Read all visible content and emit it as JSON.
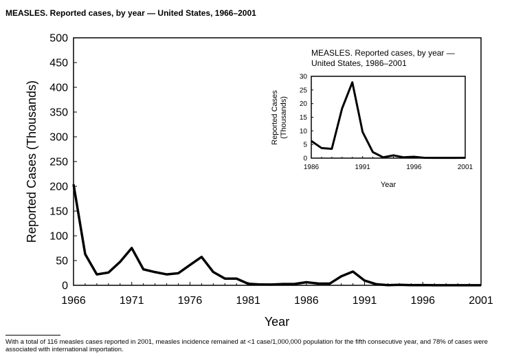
{
  "chart_data": [
    {
      "type": "line",
      "title": "MEASLES. Reported cases, by year — United States, 1966–2001",
      "xlabel": "Year",
      "ylabel": "Reported Cases (Thousands)",
      "xlim": [
        1966,
        2001
      ],
      "ylim": [
        0,
        500
      ],
      "xticks": [
        "1966",
        "1971",
        "1976",
        "1981",
        "1986",
        "1991",
        "1996",
        "2001"
      ],
      "yticks": [
        "0",
        "50",
        "100",
        "150",
        "200",
        "250",
        "300",
        "350",
        "400",
        "450",
        "500"
      ],
      "x": [
        1966,
        1967,
        1968,
        1969,
        1970,
        1971,
        1972,
        1973,
        1974,
        1975,
        1976,
        1977,
        1978,
        1979,
        1980,
        1981,
        1982,
        1983,
        1984,
        1985,
        1986,
        1987,
        1988,
        1989,
        1990,
        1991,
        1992,
        1993,
        1994,
        1995,
        1996,
        1997,
        1998,
        1999,
        2000,
        2001
      ],
      "values": [
        204,
        63,
        22,
        25.8,
        47.4,
        75.3,
        32.3,
        26.7,
        22.1,
        24.4,
        41.1,
        57.3,
        26.9,
        13.6,
        13.5,
        3.1,
        1.7,
        1.5,
        2.6,
        2.8,
        6.3,
        3.7,
        3.4,
        18.2,
        27.8,
        9.6,
        2.2,
        0.3,
        1.0,
        0.3,
        0.5,
        0.14,
        0.1,
        0.1,
        0.09,
        0.12
      ],
      "grid": false
    },
    {
      "type": "line",
      "title": "MEASLES. Reported cases, by year — United States, 1986–2001",
      "title_lines": [
        "MEASLES. Reported cases, by year —",
        "United States, 1986–2001"
      ],
      "xlabel": "Year",
      "ylabel_lines": [
        "Reported Cases",
        "(Thousands)"
      ],
      "xlim": [
        1986,
        2001
      ],
      "ylim": [
        0,
        30
      ],
      "xticks": [
        "1986",
        "1991",
        "1996",
        "2001"
      ],
      "yticks": [
        "0",
        "5",
        "10",
        "15",
        "20",
        "25",
        "30"
      ],
      "x": [
        1986,
        1987,
        1988,
        1989,
        1990,
        1991,
        1992,
        1993,
        1994,
        1995,
        1996,
        1997,
        1998,
        1999,
        2000,
        2001
      ],
      "values": [
        6.3,
        3.7,
        3.4,
        18.2,
        27.8,
        9.6,
        2.2,
        0.3,
        1.0,
        0.3,
        0.5,
        0.14,
        0.1,
        0.1,
        0.09,
        0.12
      ],
      "grid": false
    }
  ],
  "footnote": "With a total of 116 measles cases reported in 2001, measles incidence remained at <1 case/1,000,000 population for the fifth consecutive year, and 78% of cases were associated with international importation."
}
